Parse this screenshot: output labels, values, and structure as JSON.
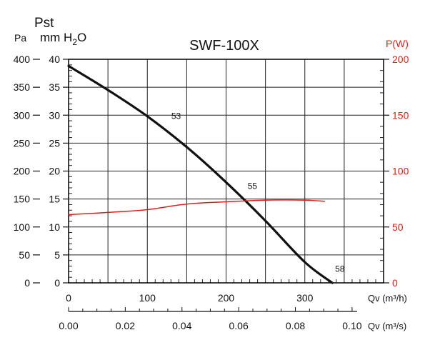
{
  "chart_data": {
    "type": "line",
    "title": "SWF-100X",
    "y_left": {
      "symbol": "Pst",
      "unit_pa": "Pa",
      "unit_mm": "mm H",
      "unit_mm_sub": "2",
      "unit_mm_tail": "O",
      "pa_range": [
        0,
        400
      ],
      "pa_ticks": [
        0,
        50,
        100,
        150,
        200,
        250,
        300,
        350,
        400
      ],
      "mm_range": [
        0,
        40
      ],
      "mm_ticks": [
        0,
        5,
        10,
        15,
        20,
        25,
        30,
        35,
        40
      ]
    },
    "y_right": {
      "label": "P(W)",
      "range": [
        0,
        200
      ],
      "ticks": [
        0,
        50,
        100,
        150,
        200
      ],
      "color": "#e0201b"
    },
    "x_top": {
      "label": "Qv (m³/h)",
      "range": [
        0,
        400
      ],
      "ticks": [
        "0",
        "100",
        "200",
        "300"
      ]
    },
    "x_bottom": {
      "label": "Qv (m³/s)",
      "range": [
        0,
        0.111111
      ],
      "ticks": [
        "0.00",
        "0.02",
        "0.04",
        "0.06",
        "0.08",
        "0.10"
      ]
    },
    "grid": true,
    "series": [
      {
        "kind": "pressure",
        "color": "#111111",
        "x": [
          0,
          50,
          100,
          150,
          200,
          250,
          300,
          335
        ],
        "y": [
          388,
          345,
          298,
          243,
          180,
          111,
          37,
          0
        ]
      },
      {
        "kind": "power",
        "color": "#e0201b",
        "x": [
          0,
          50,
          100,
          150,
          200,
          250,
          300,
          325
        ],
        "y": [
          61,
          63,
          65.5,
          70.5,
          72.5,
          74,
          74,
          73
        ]
      }
    ],
    "annotations": [
      {
        "text": "53",
        "x": 125,
        "y": 288
      },
      {
        "text": "55",
        "x": 222,
        "y": 163
      },
      {
        "text": "58",
        "x": 333,
        "y": 15
      }
    ]
  }
}
